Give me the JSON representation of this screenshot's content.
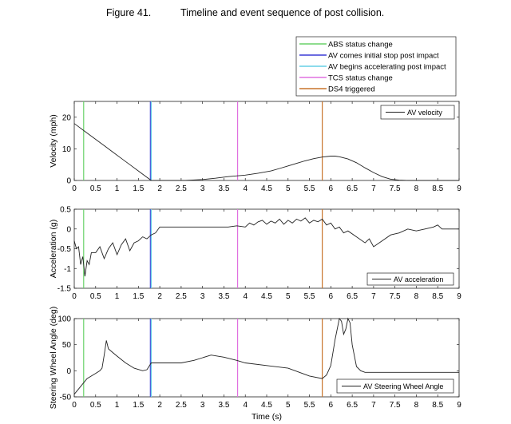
{
  "figure": {
    "number": "Figure 41.",
    "caption": "Timeline and event sequence of post collision."
  },
  "legend": [
    {
      "label": "ABS status change",
      "color": "#6ad26a"
    },
    {
      "label": "AV comes initial stop post impact",
      "color": "#3b3bd6"
    },
    {
      "label": "AV begins accelerating post impact",
      "color": "#67cfe6"
    },
    {
      "label": "TCS status change",
      "color": "#e070e0"
    },
    {
      "label": "DS4 triggered",
      "color": "#c8742a"
    }
  ],
  "chart_data": [
    {
      "type": "line",
      "name": "velocity",
      "title": "",
      "xlabel": "",
      "ylabel": "Velocity (mph)",
      "xlim": [
        0,
        9
      ],
      "ylim": [
        0,
        25
      ],
      "xticks": [
        "0",
        "0.5",
        "1",
        "1.5",
        "2",
        "2.5",
        "3",
        "3.5",
        "4",
        "4.5",
        "5",
        "5.5",
        "6",
        "6.5",
        "7",
        "7.5",
        "8",
        "8.5",
        "9"
      ],
      "yticks": [
        "0",
        "10",
        "20"
      ],
      "series": [
        {
          "name": "AV velocity",
          "x": [
            0,
            0.1,
            0.2,
            0.3,
            0.5,
            0.7,
            0.9,
            1.1,
            1.3,
            1.5,
            1.65,
            1.8,
            2.2,
            2.6,
            3.0,
            3.3,
            3.6,
            4.0,
            4.3,
            4.6,
            4.8,
            5.0,
            5.2,
            5.4,
            5.6,
            5.8,
            6.0,
            6.1,
            6.2,
            6.4,
            6.6,
            6.8,
            7.0,
            7.2,
            7.4,
            7.6,
            7.8,
            8.0,
            9.0
          ],
          "y": [
            18,
            17,
            16,
            15,
            13,
            11,
            9,
            7,
            5,
            3,
            1.5,
            0,
            0,
            0,
            0.3,
            0.7,
            1.2,
            1.7,
            2.3,
            3.0,
            3.8,
            4.6,
            5.4,
            6.2,
            6.9,
            7.4,
            7.7,
            7.7,
            7.5,
            6.8,
            5.6,
            4.0,
            2.5,
            1.2,
            0.4,
            0.1,
            0,
            0,
            0
          ]
        }
      ],
      "event_lines": [
        0.22,
        1.78,
        1.8,
        3.82,
        5.8
      ]
    },
    {
      "type": "line",
      "name": "acceleration",
      "title": "",
      "xlabel": "",
      "ylabel": "Acceleration (g)",
      "xlim": [
        0,
        9
      ],
      "ylim": [
        -1.5,
        0.5
      ],
      "xticks": [
        "0",
        "0.5",
        "1",
        "1.5",
        "2",
        "2.5",
        "3",
        "3.5",
        "4",
        "4.5",
        "5",
        "5.5",
        "6",
        "6.5",
        "7",
        "7.5",
        "8",
        "8.5",
        "9"
      ],
      "yticks": [
        "-1.5",
        "-1",
        "-0.5",
        "0",
        "0.5"
      ],
      "series": [
        {
          "name": "AV acceleration",
          "x": [
            0,
            0.05,
            0.1,
            0.15,
            0.2,
            0.25,
            0.3,
            0.35,
            0.4,
            0.5,
            0.6,
            0.7,
            0.8,
            0.9,
            1.0,
            1.1,
            1.2,
            1.3,
            1.4,
            1.5,
            1.6,
            1.7,
            1.8,
            1.9,
            2.0,
            2.2,
            2.5,
            2.8,
            3.0,
            3.3,
            3.6,
            3.8,
            4.0,
            4.1,
            4.2,
            4.3,
            4.4,
            4.5,
            4.6,
            4.7,
            4.8,
            4.9,
            5.0,
            5.1,
            5.2,
            5.3,
            5.4,
            5.5,
            5.6,
            5.7,
            5.8,
            5.9,
            6.0,
            6.1,
            6.2,
            6.3,
            6.4,
            6.6,
            6.8,
            6.9,
            7.0,
            7.2,
            7.4,
            7.6,
            7.8,
            8.0,
            8.2,
            8.4,
            8.5,
            8.6,
            8.8,
            9.0
          ],
          "y": [
            -0.3,
            -0.5,
            -0.45,
            -0.9,
            -0.7,
            -1.2,
            -0.8,
            -0.9,
            -0.6,
            -0.6,
            -0.45,
            -0.75,
            -0.5,
            -0.35,
            -0.65,
            -0.4,
            -0.25,
            -0.55,
            -0.35,
            -0.3,
            -0.2,
            -0.25,
            -0.15,
            -0.1,
            0.05,
            0.05,
            0.05,
            0.05,
            0.05,
            0.05,
            0.05,
            0.08,
            0.05,
            0.15,
            0.1,
            0.18,
            0.22,
            0.12,
            0.2,
            0.15,
            0.25,
            0.12,
            0.22,
            0.15,
            0.25,
            0.2,
            0.28,
            0.15,
            0.22,
            0.18,
            0.25,
            0.1,
            0.15,
            0.0,
            0.05,
            -0.1,
            -0.05,
            -0.2,
            -0.35,
            -0.25,
            -0.45,
            -0.3,
            -0.15,
            -0.1,
            0.0,
            -0.05,
            0.0,
            0.05,
            0.1,
            0.0,
            0.0,
            0.0
          ]
        }
      ],
      "event_lines": [
        0.22,
        1.78,
        1.8,
        3.82,
        5.8
      ]
    },
    {
      "type": "line",
      "name": "steering",
      "title": "",
      "xlabel": "Time (s)",
      "ylabel": "Steering Wheel Angle (deg)",
      "xlim": [
        0,
        9
      ],
      "ylim": [
        -50,
        100
      ],
      "xticks": [
        "0",
        "0.5",
        "1",
        "1.5",
        "2",
        "2.5",
        "3",
        "3.5",
        "4",
        "4.5",
        "5",
        "5.5",
        "6",
        "6.5",
        "7",
        "7.5",
        "8",
        "8.5",
        "9"
      ],
      "yticks": [
        "-50",
        "0",
        "50",
        "100"
      ],
      "series": [
        {
          "name": "AV Steering Wheel Angle",
          "x": [
            0,
            0.1,
            0.2,
            0.3,
            0.4,
            0.5,
            0.6,
            0.65,
            0.7,
            0.75,
            0.8,
            0.9,
            1.0,
            1.2,
            1.4,
            1.6,
            1.7,
            1.8,
            2.0,
            2.2,
            2.5,
            2.8,
            3.0,
            3.2,
            3.5,
            3.8,
            4.0,
            4.5,
            5.0,
            5.5,
            5.8,
            5.9,
            6.0,
            6.1,
            6.2,
            6.25,
            6.3,
            6.35,
            6.4,
            6.45,
            6.5,
            6.6,
            6.7,
            6.8,
            7.0,
            7.5,
            8.0,
            8.5,
            9.0
          ],
          "y": [
            -45,
            -35,
            -25,
            -15,
            -10,
            -5,
            0,
            5,
            30,
            58,
            42,
            35,
            28,
            15,
            5,
            0,
            2,
            15,
            15,
            15,
            15,
            20,
            25,
            30,
            26,
            20,
            15,
            10,
            5,
            -10,
            -15,
            -8,
            10,
            60,
            100,
            95,
            70,
            80,
            100,
            92,
            50,
            8,
            0,
            -3,
            -3,
            -3,
            -3,
            -3,
            -3
          ]
        }
      ],
      "event_lines": [
        0.22,
        1.78,
        1.8,
        3.82,
        5.8
      ]
    }
  ]
}
